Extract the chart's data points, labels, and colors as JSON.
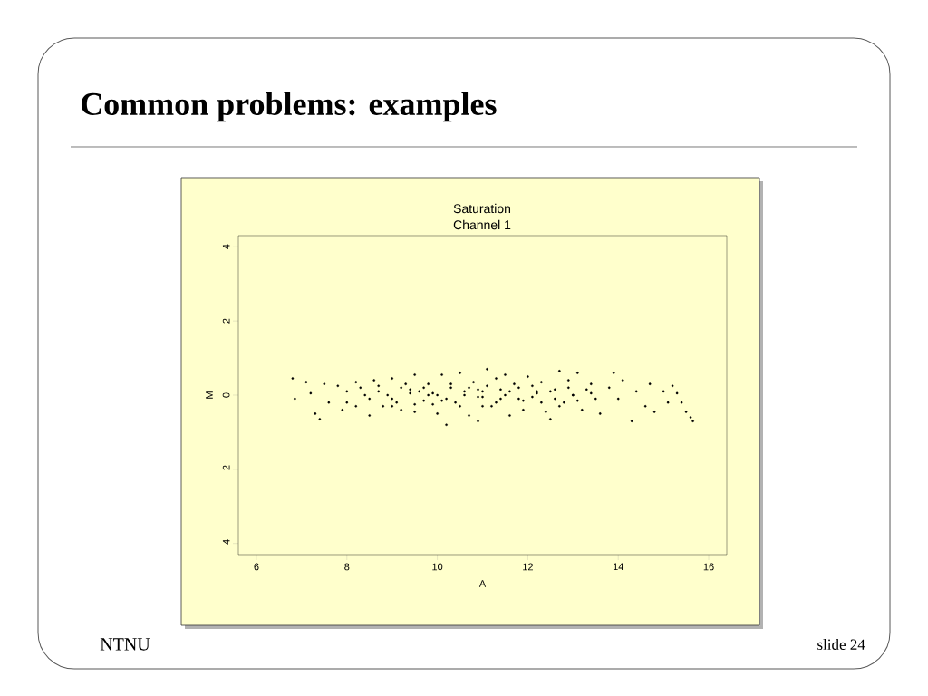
{
  "chart_data": {
    "type": "scatter",
    "title": "Saturation",
    "subtitle": "Channel 1",
    "xlabel": "A",
    "ylabel": "M",
    "annotations": [
      "Common problems: examples",
      "NTNU",
      "slide 24"
    ],
    "xlim": [
      5.6,
      16.4
    ],
    "ylim": [
      -4.3,
      4.3
    ],
    "xticks": [
      6,
      8,
      10,
      12,
      14,
      16
    ],
    "yticks": [
      -4,
      -2,
      0,
      2,
      4
    ],
    "series": [
      {
        "color": "#000000",
        "x": [
          6.8,
          6.85,
          7.1,
          7.2,
          7.3,
          7.4,
          7.5,
          7.6,
          7.8,
          7.9,
          8.0,
          8.0,
          8.2,
          8.2,
          8.4,
          8.5,
          8.6,
          8.7,
          8.8,
          9.0,
          9.0,
          9.2,
          9.2,
          9.4,
          9.5,
          9.5,
          9.6,
          9.7,
          9.8,
          9.9,
          10.0,
          10.0,
          10.1,
          10.2,
          10.3,
          10.4,
          10.5,
          10.6,
          10.7,
          10.8,
          10.9,
          10.9,
          11.0,
          11.0,
          11.1,
          11.2,
          11.3,
          11.4,
          11.5,
          11.6,
          11.6,
          11.8,
          11.9,
          12.0,
          12.1,
          12.2,
          12.3,
          12.4,
          12.5,
          12.6,
          12.7,
          12.8,
          12.9,
          13.0,
          13.1,
          13.2,
          13.4,
          13.5,
          13.6,
          13.8,
          13.9,
          14.0,
          14.1,
          14.3,
          14.4,
          14.6,
          14.7,
          14.8,
          15.0,
          15.1,
          15.2,
          15.3,
          15.4,
          15.5,
          15.6,
          15.65,
          8.3,
          8.5,
          8.7,
          8.9,
          9.1,
          9.3,
          9.5,
          9.7,
          9.9,
          10.1,
          10.3,
          10.5,
          10.7,
          10.9,
          11.1,
          11.3,
          11.5,
          11.7,
          11.9,
          12.1,
          12.3,
          12.5,
          12.7,
          12.9,
          13.1,
          13.3,
          9.0,
          9.4,
          9.8,
          10.2,
          10.6,
          11.0,
          11.4,
          11.8,
          12.2,
          12.6,
          13.0,
          13.4
        ],
        "values": [
          0.45,
          -0.1,
          0.35,
          0.05,
          -0.5,
          -0.65,
          0.3,
          -0.2,
          0.25,
          -0.4,
          0.1,
          -0.2,
          0.35,
          -0.3,
          0.0,
          -0.55,
          0.4,
          0.1,
          -0.3,
          0.45,
          -0.1,
          0.2,
          -0.4,
          0.05,
          0.55,
          -0.45,
          0.1,
          -0.15,
          0.3,
          -0.25,
          0.0,
          -0.5,
          0.55,
          -0.8,
          0.2,
          -0.2,
          0.6,
          0.0,
          -0.55,
          0.35,
          -0.7,
          0.15,
          0.1,
          -0.3,
          0.7,
          -0.3,
          0.45,
          -0.1,
          0.55,
          -0.55,
          0.1,
          0.2,
          -0.4,
          0.5,
          -0.05,
          0.1,
          0.35,
          -0.45,
          -0.65,
          0.15,
          0.65,
          -0.2,
          0.4,
          0.0,
          0.6,
          -0.4,
          0.3,
          -0.1,
          -0.5,
          0.2,
          0.6,
          -0.1,
          0.4,
          -0.7,
          0.1,
          -0.3,
          0.3,
          -0.45,
          0.1,
          -0.2,
          0.25,
          0.05,
          -0.2,
          -0.45,
          -0.6,
          -0.7,
          0.2,
          -0.1,
          0.25,
          0.0,
          -0.2,
          0.3,
          -0.25,
          0.2,
          0.05,
          -0.15,
          0.3,
          -0.3,
          0.2,
          -0.05,
          0.25,
          -0.2,
          0.0,
          0.3,
          -0.15,
          0.25,
          -0.2,
          0.1,
          -0.3,
          0.2,
          -0.15,
          0.15,
          -0.3,
          0.15,
          0.0,
          -0.1,
          0.1,
          -0.05,
          0.15,
          -0.1,
          0.05,
          -0.1,
          0.0,
          0.05
        ]
      }
    ]
  }
}
